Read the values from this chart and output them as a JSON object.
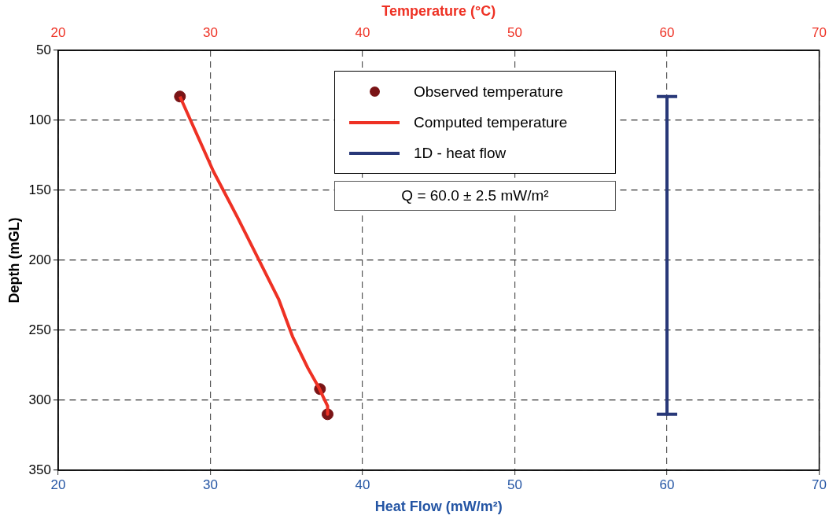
{
  "chart_data": {
    "type": "line",
    "xlabel": "Heat Flow (mW/m²)",
    "x2label": "Temperature (°C)",
    "ylabel": "Depth (mGL)",
    "xlim": [
      20,
      70
    ],
    "xticks": [
      20,
      30,
      40,
      50,
      60,
      70
    ],
    "x2lim": [
      20,
      70
    ],
    "x2ticks": [
      20,
      30,
      40,
      50,
      60,
      70
    ],
    "ylim": [
      350,
      50
    ],
    "yticks": [
      50,
      100,
      150,
      200,
      250,
      300,
      350
    ],
    "grid": true,
    "legend": "top",
    "line_style": "solid",
    "annotations": [
      "Q = 60.0 ± 2.5 mW/m²"
    ],
    "series": [
      {
        "name": "Observed temperature",
        "type": "scatter",
        "axis": "x2",
        "marker": "circle",
        "color": "#7a1416",
        "x": [
          28,
          37.2,
          37.7
        ],
        "values": [
          83,
          292,
          310
        ]
      },
      {
        "name": "Computed temperature",
        "axis": "x2",
        "marker": "none",
        "color": "#ee3124",
        "x": [
          28,
          30.2,
          31.8,
          34.5,
          35.4,
          36.4,
          37.1,
          37.7,
          37.7
        ],
        "values": [
          83,
          136.5,
          169.7,
          228.2,
          254.5,
          276.9,
          290.4,
          304.2,
          310
        ]
      },
      {
        "name": "1D - heat flow",
        "marker": "none",
        "color": "#283878",
        "x": [
          60,
          60
        ],
        "values": [
          83,
          310
        ],
        "errors": [
          0,
          0
        ]
      }
    ]
  }
}
